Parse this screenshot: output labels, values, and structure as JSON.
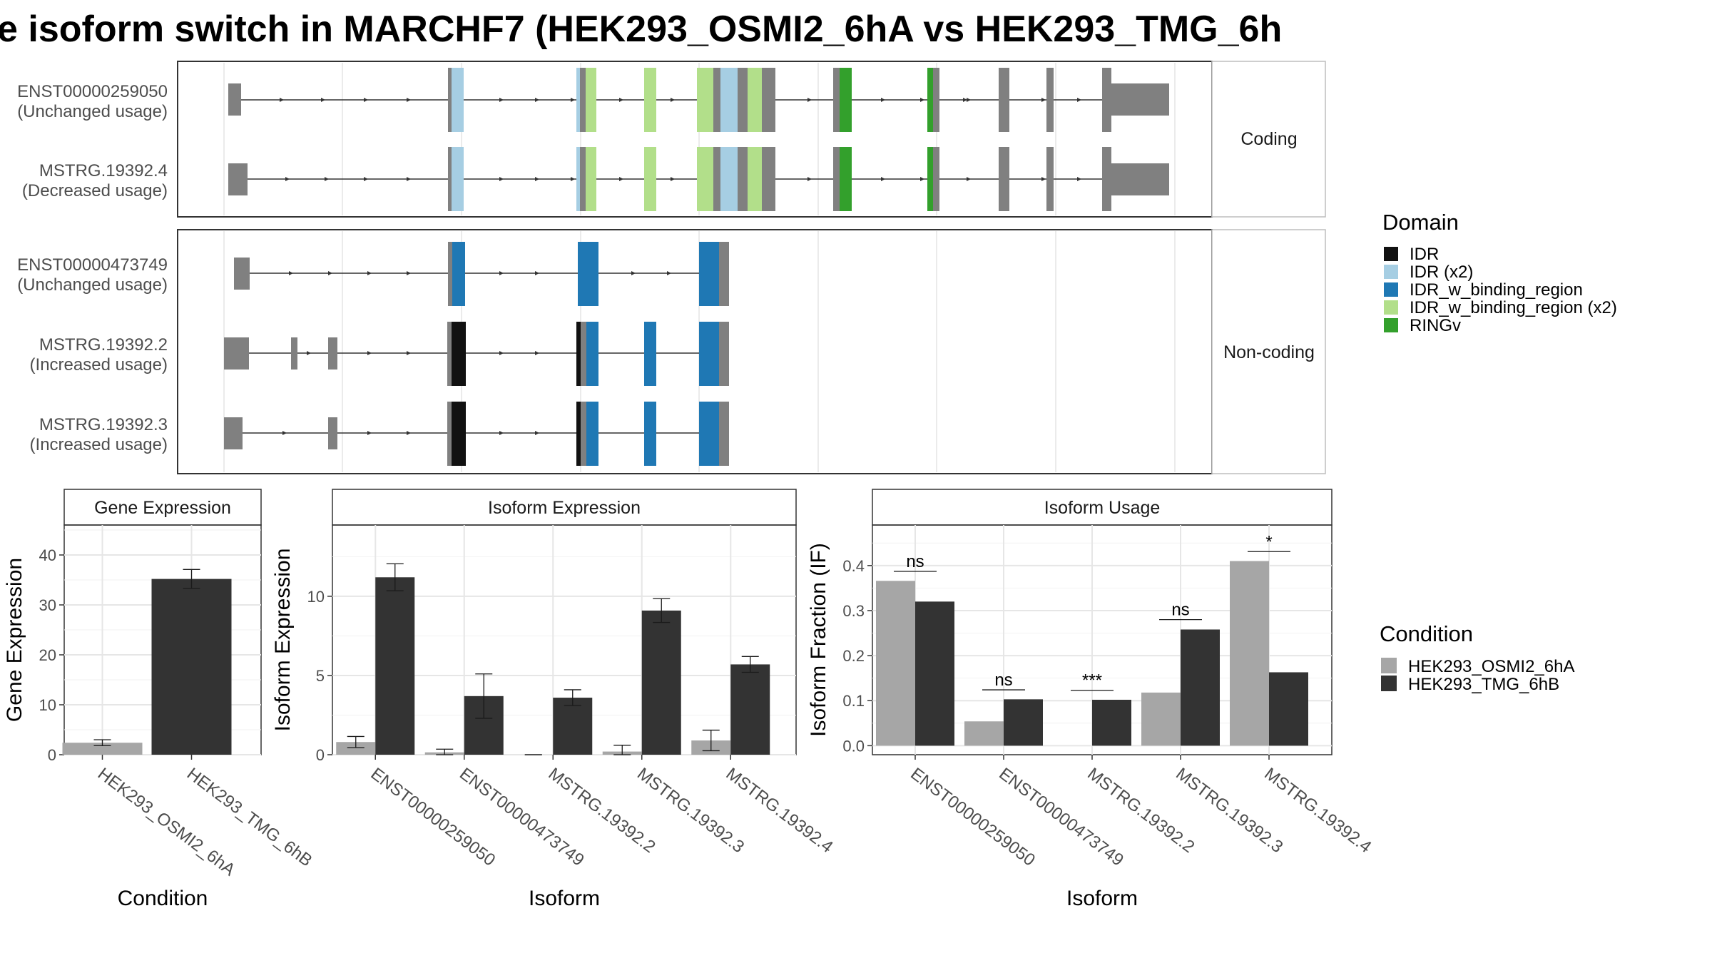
{
  "title": "e isoform switch in MARCHF7 (HEK293_OSMI2_6hA vs HEK293_TMG_6h",
  "colors": {
    "grey_exon": "#808080",
    "IDR": "#111111",
    "IDR_x2": "#a6cee3",
    "IDR_w_binding_region": "#1f78b4",
    "IDR_w_binding_region_x2": "#b2df8a",
    "RINGv": "#33a02c",
    "cond_A": "#a6a6a6",
    "cond_B": "#333333"
  },
  "structure": {
    "facets": [
      "Coding",
      "Non-coding"
    ],
    "transcripts": [
      {
        "id": "ENST00000259050",
        "usage": "(Unchanged usage)",
        "facet": 0
      },
      {
        "id": "MSTRG.19392.4",
        "usage": "(Decreased usage)",
        "facet": 0
      },
      {
        "id": "ENST00000473749",
        "usage": "(Unchanged usage)",
        "facet": 1
      },
      {
        "id": "MSTRG.19392.2",
        "usage": "(Increased usage)",
        "facet": 1
      },
      {
        "id": "MSTRG.19392.3",
        "usage": "(Increased usage)",
        "facet": 1
      }
    ]
  },
  "legend_domain": {
    "title": "Domain",
    "items": [
      {
        "label": "IDR",
        "color": "#111111"
      },
      {
        "label": "IDR (x2)",
        "color": "#a6cee3"
      },
      {
        "label": "IDR_w_binding_region",
        "color": "#1f78b4"
      },
      {
        "label": "IDR_w_binding_region (x2)",
        "color": "#b2df8a"
      },
      {
        "label": "RINGv",
        "color": "#33a02c"
      }
    ]
  },
  "legend_condition": {
    "title": "Condition",
    "items": [
      {
        "label": "HEK293_OSMI2_6hA",
        "color": "#a6a6a6"
      },
      {
        "label": "HEK293_TMG_6hB",
        "color": "#333333"
      }
    ]
  },
  "chart_data": [
    {
      "type": "bar",
      "title": "Gene Expression",
      "xlabel": "Condition",
      "ylabel": "Gene Expression",
      "categories": [
        "HEK293_OSMI2_6hA",
        "HEK293_TMG_6hB"
      ],
      "values": [
        2.4,
        35.2
      ],
      "errors": [
        0.6,
        1.9
      ],
      "ylim": [
        0,
        46
      ],
      "yticks": [
        0,
        10,
        20,
        30,
        40
      ],
      "grid": true
    },
    {
      "type": "bar",
      "title": "Isoform Expression",
      "xlabel": "Isoform",
      "ylabel": "Isoform Expression",
      "categories": [
        "ENST00000259050",
        "ENST00000473749",
        "MSTRG.19392.2",
        "MSTRG.19392.3",
        "MSTRG.19392.4"
      ],
      "series": [
        {
          "name": "HEK293_OSMI2_6hA",
          "values": [
            0.8,
            0.15,
            0.0,
            0.2,
            0.9
          ],
          "errors": [
            0.35,
            0.2,
            0.0,
            0.4,
            0.65
          ]
        },
        {
          "name": "HEK293_TMG_6hB",
          "values": [
            11.2,
            3.7,
            3.6,
            9.1,
            5.7
          ],
          "errors": [
            0.85,
            1.4,
            0.5,
            0.75,
            0.5
          ]
        }
      ],
      "ylim": [
        0,
        14.5
      ],
      "yticks": [
        0,
        5,
        10
      ],
      "grid": true
    },
    {
      "type": "bar",
      "title": "Isoform Usage",
      "xlabel": "Isoform",
      "ylabel": "Isoform Fraction (IF)",
      "categories": [
        "ENST00000259050",
        "ENST00000473749",
        "MSTRG.19392.2",
        "MSTRG.19392.3",
        "MSTRG.19392.4"
      ],
      "series": [
        {
          "name": "HEK293_OSMI2_6hA",
          "values": [
            0.366,
            0.054,
            0.0,
            0.118,
            0.41
          ]
        },
        {
          "name": "HEK293_TMG_6hB",
          "values": [
            0.32,
            0.103,
            0.102,
            0.258,
            0.163
          ]
        }
      ],
      "significance": [
        "ns",
        "ns",
        "***",
        "ns",
        "*"
      ],
      "sig_heights": [
        0.387,
        0.124,
        0.123,
        0.28,
        0.431
      ],
      "ylim": [
        -0.02,
        0.49
      ],
      "yticks": [
        0.0,
        0.1,
        0.2,
        0.3,
        0.4
      ],
      "ytick_labels": [
        "0.0",
        "0.1",
        "0.2",
        "0.3",
        "0.4"
      ],
      "grid": true
    }
  ]
}
